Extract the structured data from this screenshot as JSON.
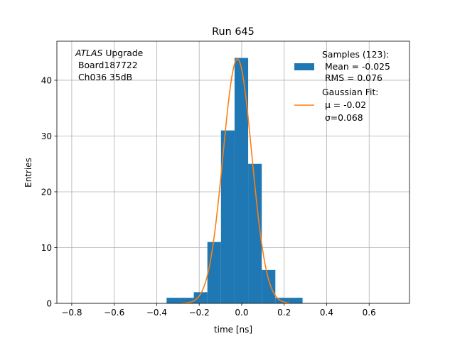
{
  "chart_data": {
    "type": "bar",
    "title": "Run 645",
    "xlabel": "time [ns]",
    "ylabel": "Entries",
    "xlim": [
      -0.87,
      0.79
    ],
    "ylim": [
      0,
      47
    ],
    "grid": true,
    "legend_position": "top-right",
    "annotation": {
      "line1_italic": "ATLAS",
      "line1_rest": " Upgrade",
      "line2": " Board187722",
      "line3": " Ch036 35dB"
    },
    "x_ticks": [
      {
        "value": -0.8,
        "label": "−0.8"
      },
      {
        "value": -0.6,
        "label": "−0.6"
      },
      {
        "value": -0.4,
        "label": "−0.4"
      },
      {
        "value": -0.2,
        "label": "−0.2"
      },
      {
        "value": 0.0,
        "label": "0.0"
      },
      {
        "value": 0.2,
        "label": "0.2"
      },
      {
        "value": 0.4,
        "label": "0.4"
      },
      {
        "value": 0.6,
        "label": "0.6"
      }
    ],
    "y_ticks": [
      {
        "value": 0,
        "label": "0"
      },
      {
        "value": 10,
        "label": "10"
      },
      {
        "value": 20,
        "label": "20"
      },
      {
        "value": 30,
        "label": "30"
      },
      {
        "value": 40,
        "label": "40"
      }
    ],
    "histogram": {
      "name": "Samples (123):",
      "stats_line1": " Mean = -0.025",
      "stats_line2": " RMS = 0.076",
      "color": "#1f77b4",
      "bins": [
        {
          "x0": -0.3535,
          "x1": -0.2895,
          "count": 1
        },
        {
          "x0": -0.2895,
          "x1": -0.2255,
          "count": 1
        },
        {
          "x0": -0.2255,
          "x1": -0.1615,
          "count": 2
        },
        {
          "x0": -0.1615,
          "x1": -0.0975,
          "count": 11
        },
        {
          "x0": -0.0975,
          "x1": -0.0335,
          "count": 31
        },
        {
          "x0": -0.0335,
          "x1": 0.0305,
          "count": 44
        },
        {
          "x0": 0.0305,
          "x1": 0.0945,
          "count": 25
        },
        {
          "x0": 0.0945,
          "x1": 0.1585,
          "count": 6
        },
        {
          "x0": 0.1585,
          "x1": 0.2225,
          "count": 1
        },
        {
          "x0": 0.2225,
          "x1": 0.2865,
          "count": 1
        }
      ]
    },
    "fit": {
      "name": "Gaussian Fit:",
      "mu_line": " μ = -0.02",
      "sigma_line": " σ=0.068",
      "color": "#ff7f0e",
      "amplitude": 43.8,
      "mu": -0.02,
      "sigma": 0.068,
      "x_range": [
        -0.2895,
        0.2225
      ]
    }
  }
}
